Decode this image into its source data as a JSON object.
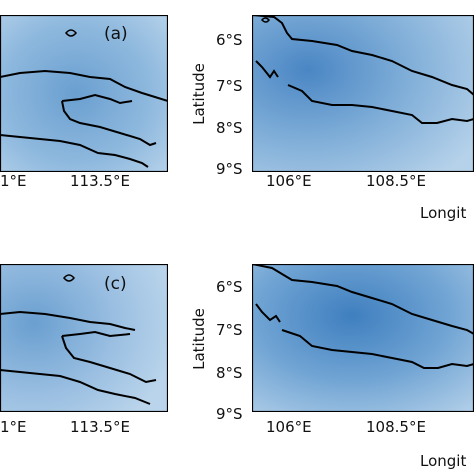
{
  "panels": [
    {
      "id": "a",
      "label": "(a)",
      "x_ticks": [
        "1°E",
        "113.5°E"
      ]
    },
    {
      "id": "b",
      "label": "",
      "x_ticks": [
        "106°E",
        "108.5°E"
      ],
      "y_ticks": [
        "6°S",
        "7°S",
        "8°S",
        "9°S"
      ],
      "ylabel": "Latitude",
      "xlabel_partial": "Longit"
    },
    {
      "id": "c",
      "label": "(c)",
      "x_ticks": [
        "1°E",
        "113.5°E"
      ]
    },
    {
      "id": "d",
      "label": "",
      "x_ticks": [
        "106°E",
        "108.5°E"
      ],
      "y_ticks": [
        "6°S",
        "7°S",
        "8°S",
        "9°S"
      ],
      "ylabel": "Latitude",
      "xlabel_partial": "Longit"
    }
  ],
  "colors": {
    "sea_light": "#b9d3ea",
    "sea_dark": "#3f7fbf",
    "coast": "#000000"
  }
}
